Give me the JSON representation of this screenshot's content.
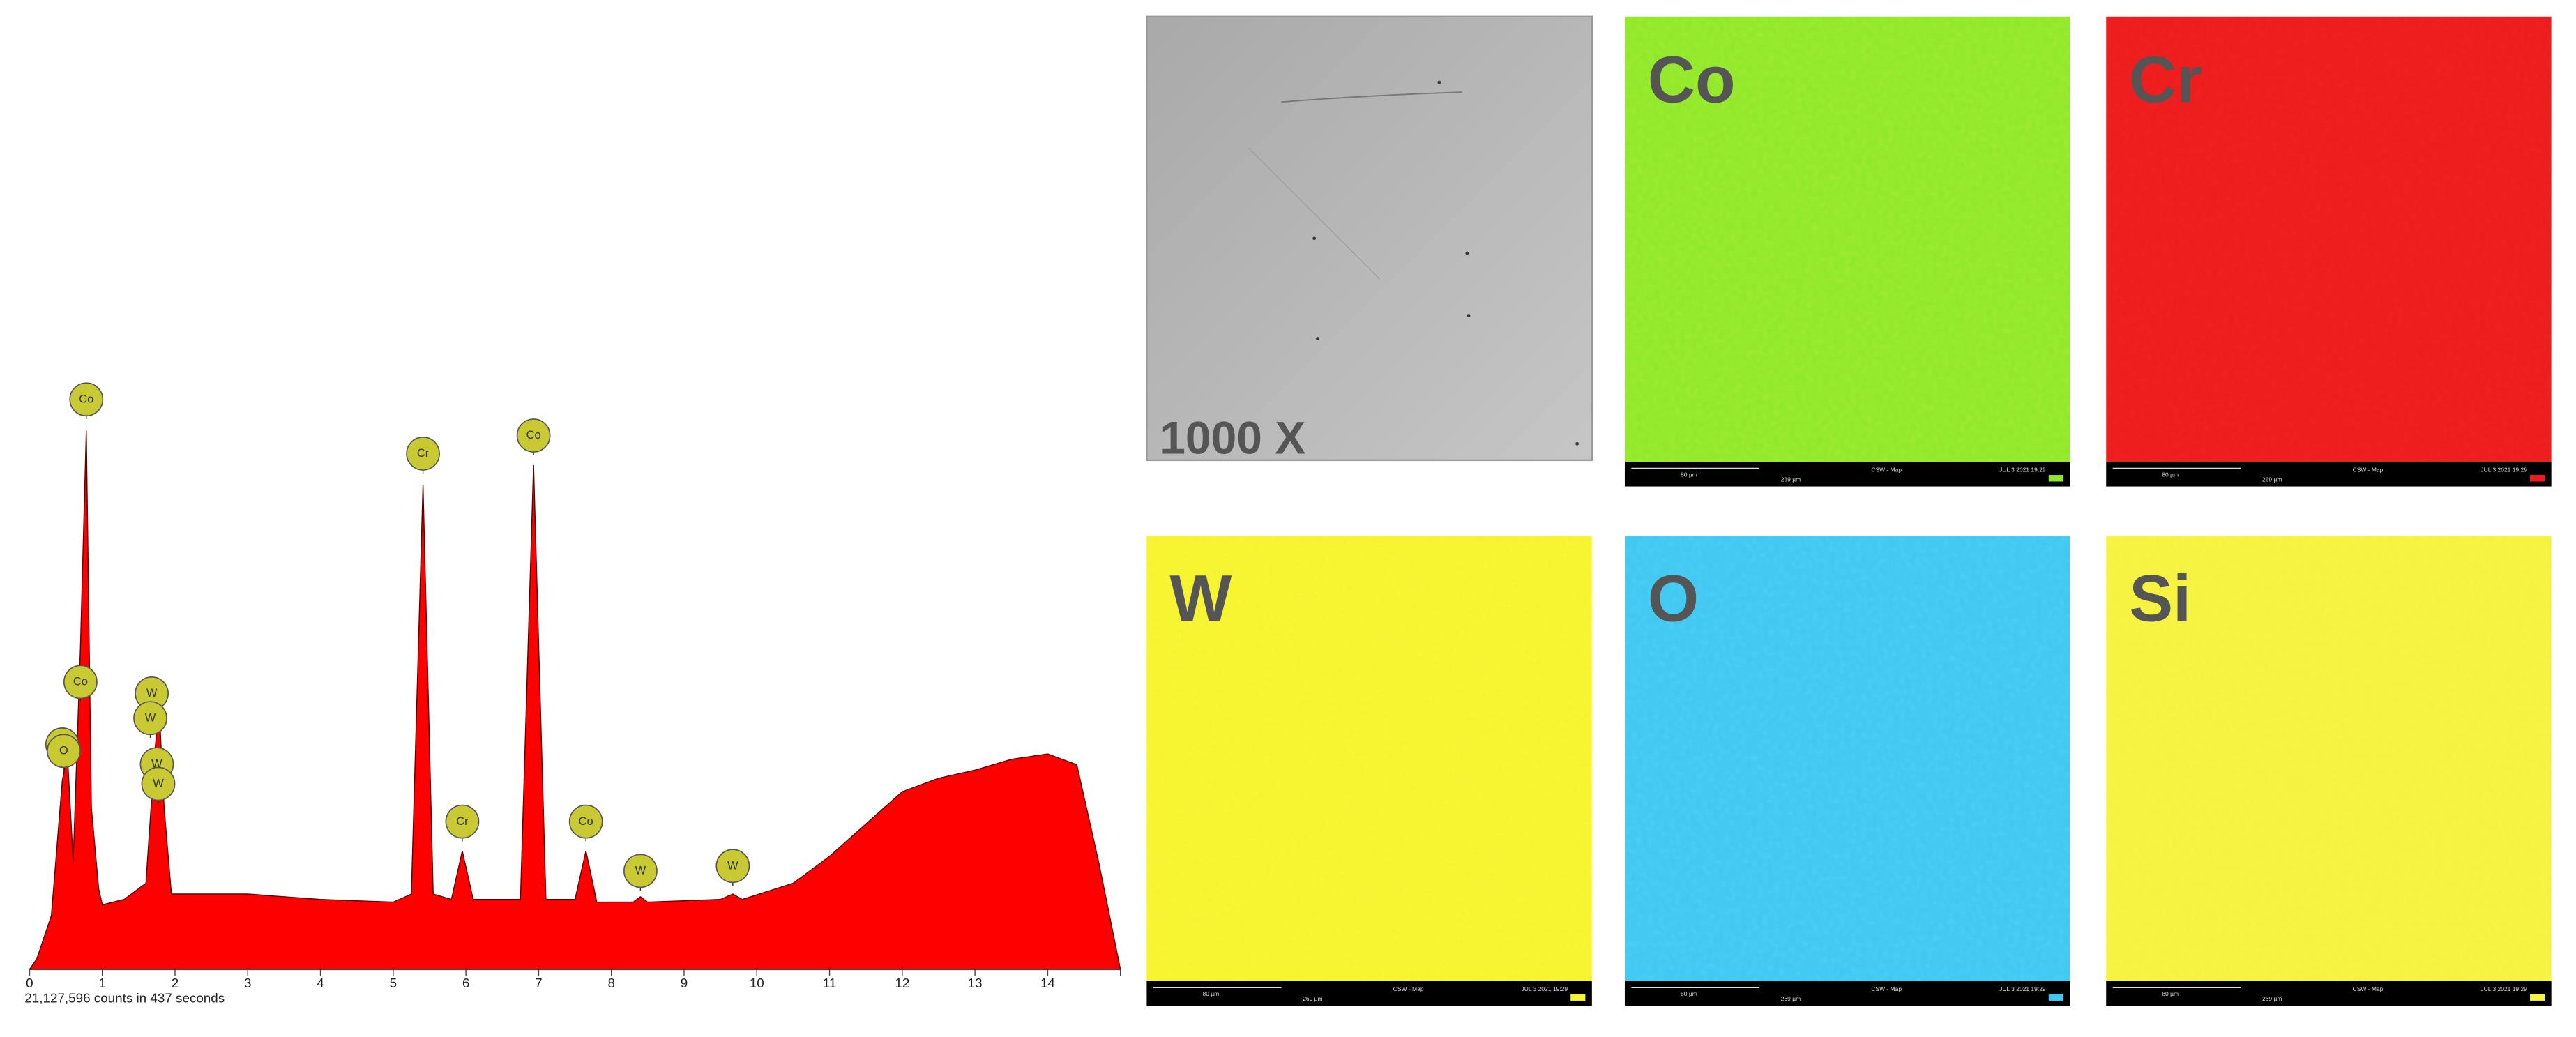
{
  "chart_data": {
    "type": "area",
    "color": "#ff0000",
    "x": [
      0,
      0.1,
      0.3,
      0.45,
      0.52,
      0.6,
      0.7,
      0.78,
      0.85,
      0.95,
      1.0,
      1.3,
      1.6,
      1.72,
      1.78,
      1.85,
      1.95,
      2.2,
      3,
      4,
      5,
      5.25,
      5.41,
      5.55,
      5.8,
      5.95,
      6.1,
      6.75,
      6.93,
      7.1,
      7.5,
      7.65,
      7.8,
      8.3,
      8.4,
      8.5,
      9.5,
      9.67,
      9.8,
      10.5,
      11,
      11.5,
      12,
      12.5,
      13,
      13.5,
      14,
      14.4,
      14.7,
      15
    ],
    "values": [
      0,
      2,
      10,
      35,
      40,
      20,
      60,
      100,
      30,
      15,
      12,
      13,
      16,
      40,
      49,
      30,
      14,
      14,
      14,
      13,
      12.5,
      14,
      90,
      14,
      13,
      22,
      13,
      13,
      93.6,
      13,
      13,
      22,
      12.5,
      12.5,
      13.5,
      12.5,
      13,
      14,
      13,
      16,
      21,
      27,
      33,
      35.5,
      37,
      39,
      40,
      38,
      20,
      0
    ],
    "xlim": [
      0,
      15
    ],
    "xticks": [
      0,
      1,
      2,
      3,
      4,
      5,
      6,
      7,
      8,
      9,
      10,
      11,
      12,
      13,
      14
    ],
    "ylim": [
      0,
      100
    ],
    "peak_labels": [
      {
        "label": "Co",
        "x": 0.78
      },
      {
        "label": "Co",
        "x": 0.7
      },
      {
        "label": "O",
        "x": 0.45
      },
      {
        "label": "O",
        "x": 0.47
      },
      {
        "label": "W",
        "x": 1.68
      },
      {
        "label": "W",
        "x": 1.66
      },
      {
        "label": "W",
        "x": 1.75
      },
      {
        "label": "W",
        "x": 1.77
      },
      {
        "label": "Cr",
        "x": 5.41
      },
      {
        "label": "Co",
        "x": 6.93
      },
      {
        "label": "Cr",
        "x": 5.95
      },
      {
        "label": "Co",
        "x": 7.65
      },
      {
        "label": "W",
        "x": 8.4
      },
      {
        "label": "W",
        "x": 9.67
      }
    ],
    "caption": "21,127,596 counts in 437 seconds"
  },
  "maps": {
    "sem": {
      "label": "1000 X"
    },
    "panels": [
      {
        "label": "Co",
        "color": "#8ee82a",
        "scale": "80 µm",
        "field": "269 µm",
        "mode": "CSW - Map",
        "date": "JUL 3 2021 19:29"
      },
      {
        "label": "Cr",
        "color": "#ee1c1c",
        "scale": "80 µm",
        "field": "269 µm",
        "mode": "CSW - Map",
        "date": "JUL 3 2021 19:29"
      },
      {
        "label": "W",
        "color": "#f6f42e",
        "scale": "80 µm",
        "field": "269 µm",
        "mode": "CSW - Map",
        "date": "JUL 3 2021 19:29"
      },
      {
        "label": "O",
        "color": "#40c6f2",
        "scale": "80 µm",
        "field": "269 µm",
        "mode": "CSW - Map",
        "date": "JUL 3 2021 19:29"
      },
      {
        "label": "Si",
        "color": "#f6f23e",
        "scale": "80 µm",
        "field": "269 µm",
        "mode": "CSW - Map",
        "date": "JUL 3 2021 19:29"
      }
    ]
  }
}
